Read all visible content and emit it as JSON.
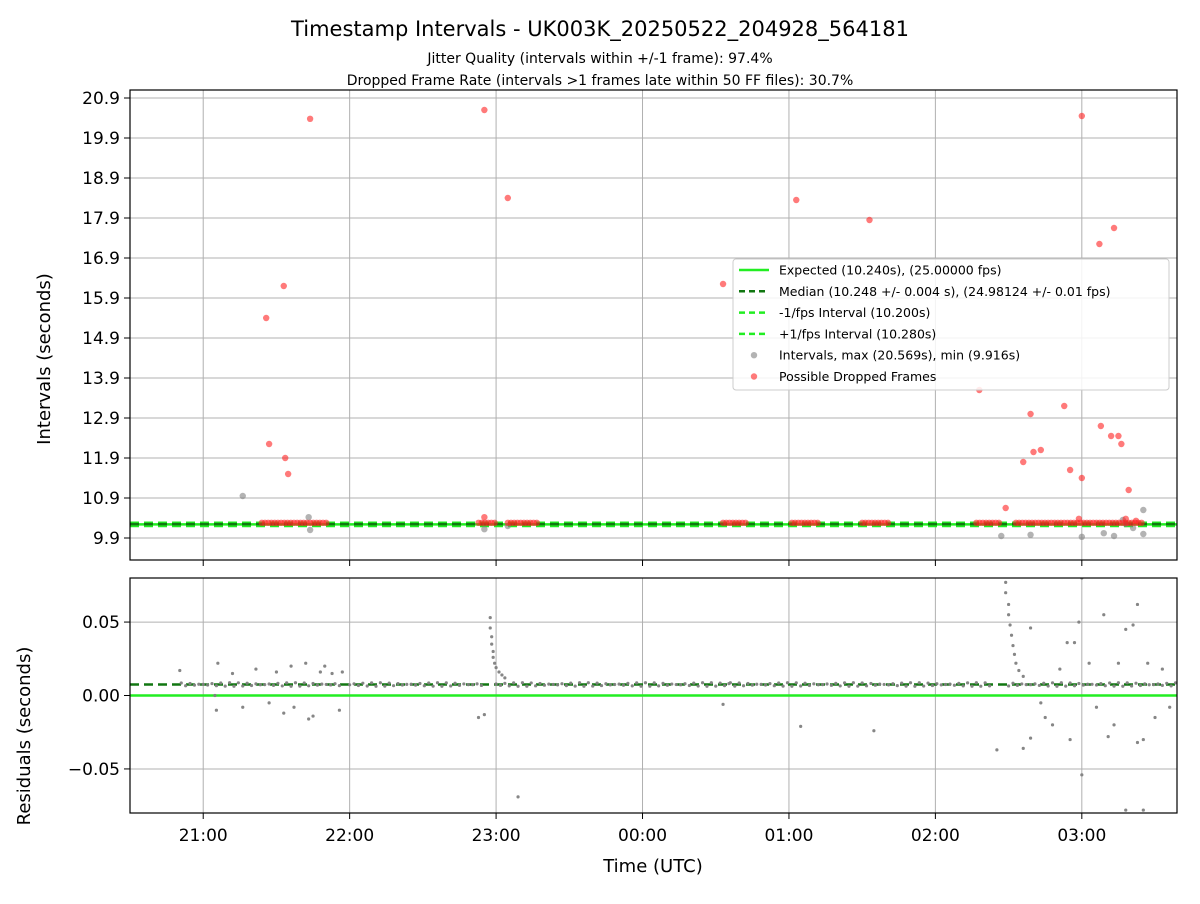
{
  "title": "Timestamp Intervals - UK003K_20250522_204928_564181",
  "subtitle_1": "Jitter Quality (intervals within +/-1 frame): 97.4%",
  "subtitle_2": "Dropped Frame Rate (intervals >1 frames late within 50 FF files): 30.7%",
  "x_tick_labels": [
    "21:00",
    "22:00",
    "23:00",
    "00:00",
    "01:00",
    "02:00",
    "03:00"
  ],
  "colors": {
    "expected": "#22ee22",
    "median": "#117711",
    "fps_band": "#22ee22",
    "intervals": "#808080",
    "dropped": "#ff2222"
  },
  "chart_data": [
    {
      "type": "scatter",
      "ylabel": "Intervals (seconds)",
      "xlabel": "",
      "x_unit": "hours since 20:00 UTC (display order across midnight)",
      "xlim": [
        0.5,
        7.65
      ],
      "ylim": [
        9.35,
        21.1
      ],
      "y_ticks": [
        "9.9",
        "10.9",
        "11.9",
        "12.9",
        "13.9",
        "14.9",
        "15.9",
        "16.9",
        "17.9",
        "18.9",
        "19.9",
        "20.9"
      ],
      "grid": true,
      "legend_position": "center-right",
      "lines": {
        "expected": 10.24,
        "median": 10.248,
        "minus_fps": 10.2,
        "plus_fps": 10.28
      },
      "legend": [
        "Expected (10.240s), (25.00000 fps)",
        "Median (10.248 +/- 0.004 s), (24.98124 +/- 0.01 fps)",
        "-1/fps Interval (10.200s)",
        "+1/fps Interval (10.280s)",
        "Intervals, max (20.569s), min (9.916s)",
        "Possible Dropped Frames"
      ],
      "series": [
        {
          "name": "Intervals, max (20.569s), min (9.916s)",
          "points": [
            [
              1.27,
              10.95
            ],
            [
              1.72,
              10.42
            ],
            [
              1.73,
              10.1
            ],
            [
              2.92,
              10.12
            ],
            [
              3.08,
              10.2
            ],
            [
              6.45,
              9.95
            ],
            [
              6.65,
              9.98
            ],
            [
              7.0,
              9.93
            ],
            [
              7.15,
              10.02
            ],
            [
              7.22,
              9.95
            ],
            [
              7.28,
              10.35
            ],
            [
              7.35,
              10.15
            ],
            [
              7.42,
              10.6
            ],
            [
              7.42,
              10.0
            ],
            [
              7.3,
              10.25
            ]
          ]
        },
        {
          "name": "Possible Dropped Frames",
          "points": [
            [
              1.73,
              20.38
            ],
            [
              2.92,
              20.6
            ],
            [
              3.08,
              18.4
            ],
            [
              1.55,
              16.2
            ],
            [
              1.43,
              15.4
            ],
            [
              1.45,
              12.25
            ],
            [
              1.56,
              11.9
            ],
            [
              1.58,
              11.5
            ],
            [
              4.55,
              16.25
            ],
            [
              5.05,
              18.35
            ],
            [
              5.55,
              17.85
            ],
            [
              6.3,
              13.6
            ],
            [
              7.0,
              20.45
            ],
            [
              7.12,
              17.25
            ],
            [
              7.22,
              17.65
            ],
            [
              6.65,
              13.0
            ],
            [
              6.88,
              13.2
            ],
            [
              6.6,
              11.8
            ],
            [
              6.67,
              12.05
            ],
            [
              6.72,
              12.1
            ],
            [
              6.92,
              11.6
            ],
            [
              7.0,
              11.4
            ],
            [
              7.13,
              12.7
            ],
            [
              7.2,
              12.45
            ],
            [
              7.25,
              12.45
            ],
            [
              7.27,
              12.25
            ],
            [
              7.32,
              11.1
            ],
            [
              6.48,
              10.65
            ],
            [
              6.98,
              10.38
            ],
            [
              7.3,
              10.38
            ],
            [
              7.37,
              10.33
            ],
            [
              2.92,
              10.42
            ]
          ],
          "clusters": [
            [
              1.4,
              1.85
            ],
            [
              2.88,
              3.0
            ],
            [
              3.08,
              3.28
            ],
            [
              4.55,
              4.72
            ],
            [
              5.02,
              5.2
            ],
            [
              5.5,
              5.68
            ],
            [
              6.28,
              6.45
            ],
            [
              6.55,
              7.42
            ]
          ],
          "cluster_value": 10.28
        }
      ]
    },
    {
      "type": "scatter",
      "ylabel": "Residuals (seconds)",
      "xlabel": "Time (UTC)",
      "xlim": [
        0.5,
        7.65
      ],
      "ylim": [
        -0.08,
        0.08
      ],
      "y_ticks": [
        "−0.05",
        "0.00",
        "0.05"
      ],
      "grid": true,
      "lines": {
        "expected": 0.0,
        "median": 0.0075
      },
      "series": [
        {
          "name": "",
          "points": [
            [
              0.84,
              0.017
            ],
            [
              1.08,
              0.0
            ],
            [
              1.1,
              0.022
            ],
            [
              1.09,
              -0.01
            ],
            [
              1.2,
              0.015
            ],
            [
              1.27,
              -0.008
            ],
            [
              1.36,
              0.018
            ],
            [
              1.45,
              -0.005
            ],
            [
              1.5,
              0.016
            ],
            [
              1.55,
              -0.012
            ],
            [
              1.6,
              0.02
            ],
            [
              1.62,
              -0.008
            ],
            [
              1.7,
              0.022
            ],
            [
              1.72,
              -0.016
            ],
            [
              1.75,
              -0.014
            ],
            [
              1.8,
              0.016
            ],
            [
              1.83,
              0.02
            ],
            [
              1.88,
              0.015
            ],
            [
              1.93,
              -0.01
            ],
            [
              1.95,
              0.016
            ],
            [
              2.88,
              -0.015
            ],
            [
              2.92,
              -0.013
            ],
            [
              2.96,
              0.053
            ],
            [
              2.96,
              0.046
            ],
            [
              2.97,
              0.04
            ],
            [
              2.97,
              0.035
            ],
            [
              2.98,
              0.03
            ],
            [
              2.98,
              0.026
            ],
            [
              2.99,
              0.022
            ],
            [
              3.0,
              0.019
            ],
            [
              3.02,
              0.016
            ],
            [
              3.04,
              0.014
            ],
            [
              3.06,
              0.012
            ],
            [
              3.15,
              -0.069
            ],
            [
              4.55,
              -0.006
            ],
            [
              5.08,
              -0.021
            ],
            [
              5.58,
              -0.024
            ],
            [
              6.42,
              -0.037
            ],
            [
              6.48,
              0.077
            ],
            [
              6.48,
              0.07
            ],
            [
              6.5,
              0.062
            ],
            [
              6.5,
              0.055
            ],
            [
              6.51,
              0.048
            ],
            [
              6.52,
              0.041
            ],
            [
              6.53,
              0.034
            ],
            [
              6.54,
              0.028
            ],
            [
              6.55,
              0.022
            ],
            [
              6.57,
              0.017
            ],
            [
              6.6,
              0.013
            ],
            [
              6.65,
              0.046
            ],
            [
              6.6,
              -0.036
            ],
            [
              6.65,
              -0.029
            ],
            [
              6.72,
              -0.005
            ],
            [
              6.75,
              -0.015
            ],
            [
              6.8,
              -0.02
            ],
            [
              6.85,
              0.018
            ],
            [
              6.9,
              0.036
            ],
            [
              6.92,
              -0.03
            ],
            [
              6.95,
              0.036
            ],
            [
              6.98,
              0.05
            ],
            [
              7.0,
              -0.054
            ],
            [
              7.0,
              0.08
            ],
            [
              7.05,
              0.022
            ],
            [
              7.1,
              -0.008
            ],
            [
              7.15,
              0.055
            ],
            [
              7.18,
              -0.028
            ],
            [
              7.22,
              -0.02
            ],
            [
              7.25,
              0.022
            ],
            [
              7.3,
              0.045
            ],
            [
              7.3,
              -0.078
            ],
            [
              7.35,
              0.048
            ],
            [
              7.38,
              0.062
            ],
            [
              7.38,
              -0.032
            ],
            [
              7.42,
              -0.03
            ],
            [
              7.42,
              -0.078
            ],
            [
              7.45,
              0.022
            ],
            [
              7.5,
              -0.015
            ],
            [
              7.55,
              0.018
            ],
            [
              7.6,
              -0.008
            ]
          ],
          "clusters": [
            [
              0.85,
              1.95
            ],
            [
              2.0,
              2.9
            ],
            [
              3.0,
              4.6
            ],
            [
              4.6,
              6.4
            ],
            [
              6.5,
              7.65
            ]
          ],
          "cluster_value": 0.0075
        }
      ]
    }
  ]
}
